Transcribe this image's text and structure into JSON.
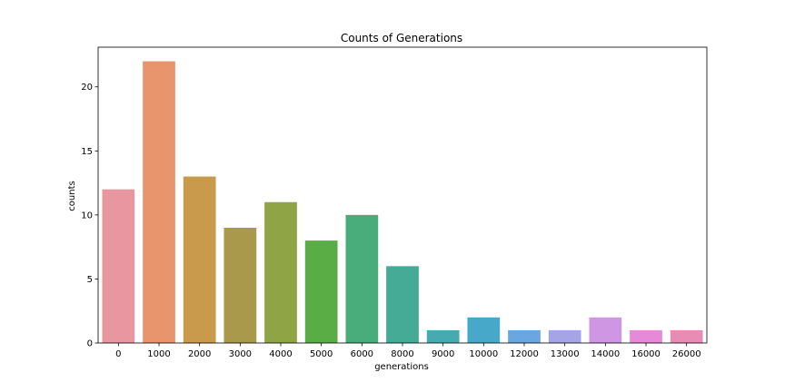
{
  "chart_data": {
    "type": "bar",
    "title": "Counts of Generations",
    "xlabel": "generations",
    "ylabel": "counts",
    "categories": [
      "0",
      "1000",
      "2000",
      "3000",
      "4000",
      "5000",
      "6000",
      "8000",
      "9000",
      "10000",
      "12000",
      "13000",
      "14000",
      "16000",
      "26000"
    ],
    "values": [
      12,
      22,
      13,
      9,
      11,
      8,
      10,
      6,
      1,
      2,
      1,
      1,
      2,
      1,
      1
    ],
    "ylim": [
      0,
      23.1
    ],
    "yticks": [
      0,
      5,
      10,
      15,
      20
    ],
    "grid": false,
    "colors": [
      "#e8969f",
      "#e8946d",
      "#c99a4c",
      "#a89a4a",
      "#8fa445",
      "#5aad45",
      "#48ad7b",
      "#45ab96",
      "#46aab0",
      "#48a8c9",
      "#6aa6e0",
      "#a5a4e5",
      "#cf96e3",
      "#e689d9",
      "#e88cb4"
    ]
  }
}
